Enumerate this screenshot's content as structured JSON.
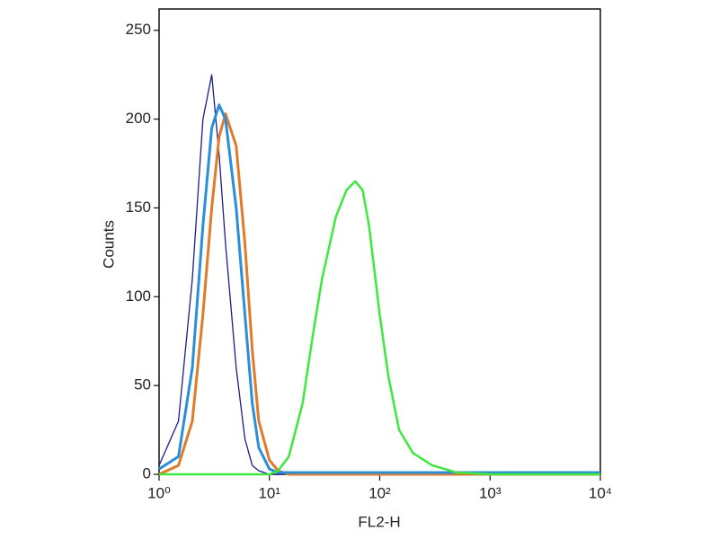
{
  "chart_data": {
    "type": "line",
    "x_label": "FL2-H",
    "y_label": "Counts",
    "xscale": "log",
    "xlim": [
      1,
      10000
    ],
    "xticks": [
      {
        "value": 1,
        "label": "10⁰"
      },
      {
        "value": 10,
        "label": "10¹"
      },
      {
        "value": 100,
        "label": "10²"
      },
      {
        "value": 1000,
        "label": "10³"
      },
      {
        "value": 10000,
        "label": "10⁴"
      }
    ],
    "ylim": [
      0,
      262
    ],
    "yticks": [
      0,
      50,
      100,
      150,
      200,
      250
    ],
    "x": [
      1,
      1.5,
      2,
      2.5,
      3,
      3.5,
      4,
      5,
      6,
      7,
      8,
      10,
      12,
      15,
      20,
      25,
      30,
      40,
      50,
      60,
      70,
      80,
      100,
      120,
      150,
      200,
      300,
      500,
      1000,
      10000
    ],
    "series": [
      {
        "color": "#1c1c8a",
        "width": 1.3,
        "values": [
          5,
          30,
          110,
          200,
          225,
          180,
          130,
          60,
          20,
          5,
          2,
          0,
          0,
          0,
          0,
          0,
          0,
          0,
          0,
          0,
          0,
          0,
          0,
          0,
          0,
          0,
          0,
          0,
          0,
          0
        ]
      },
      {
        "color": "#e07b2a",
        "width": 3,
        "values": [
          0,
          5,
          30,
          90,
          150,
          190,
          203,
          185,
          130,
          70,
          30,
          8,
          2,
          0,
          0,
          0,
          0,
          0,
          0,
          0,
          0,
          0,
          0,
          0,
          0,
          0,
          0,
          0,
          0,
          0
        ]
      },
      {
        "color": "#2a8fd8",
        "width": 3,
        "values": [
          3,
          10,
          60,
          140,
          195,
          208,
          200,
          150,
          90,
          40,
          15,
          3,
          1,
          1,
          1,
          1,
          1,
          1,
          1,
          1,
          1,
          1,
          1,
          1,
          1,
          1,
          1,
          1,
          1,
          1
        ]
      },
      {
        "color": "#3ee83e",
        "width": 2.5,
        "values": [
          0,
          0,
          0,
          0,
          0,
          0,
          0,
          0,
          0,
          0,
          0,
          0,
          2,
          10,
          40,
          80,
          110,
          145,
          160,
          165,
          160,
          140,
          90,
          55,
          25,
          12,
          5,
          1,
          0,
          0
        ]
      }
    ]
  }
}
